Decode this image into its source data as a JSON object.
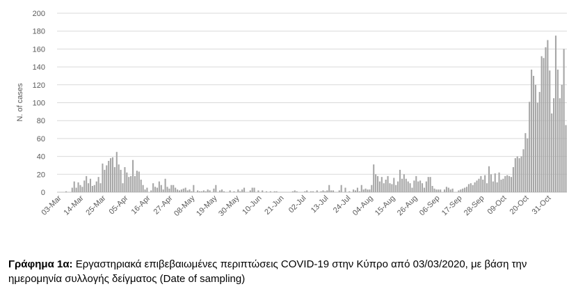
{
  "chart_data": {
    "type": "bar",
    "title": "",
    "xlabel": "",
    "ylabel": "N. of cases",
    "ylim": [
      0,
      200
    ],
    "yticks": [
      0,
      20,
      40,
      60,
      80,
      100,
      120,
      140,
      160,
      180,
      200
    ],
    "x_start": "2020-03-03",
    "x_end": "2020-10-31",
    "xtick_labels": [
      "03-Mar",
      "14-Mar",
      "25-Mar",
      "05-Apr",
      "16-Apr",
      "27-Apr",
      "08-May",
      "19-May",
      "30-May",
      "10-Jun",
      "21-Jun",
      "02-Jul",
      "13-Jul",
      "24-Jul",
      "04-Aug",
      "15-Aug",
      "26-Aug",
      "06-Sep",
      "17-Sep",
      "28-Sep",
      "09-Oct",
      "20-Oct",
      "31-Oct"
    ],
    "grid": "horizontal",
    "bar_color": "#a6a6a6",
    "values": [
      0,
      0,
      0,
      0,
      1,
      0,
      0,
      5,
      12,
      5,
      11,
      8,
      6,
      13,
      18,
      10,
      15,
      7,
      8,
      12,
      17,
      10,
      32,
      25,
      30,
      35,
      38,
      39,
      28,
      45,
      31,
      25,
      10,
      28,
      22,
      17,
      18,
      36,
      18,
      24,
      23,
      14,
      8,
      3,
      5,
      0,
      2,
      10,
      6,
      5,
      12,
      8,
      3,
      15,
      6,
      4,
      8,
      8,
      5,
      3,
      2,
      3,
      4,
      5,
      2,
      3,
      1,
      8,
      0,
      2,
      1,
      1,
      2,
      1,
      3,
      2,
      0,
      4,
      8,
      0,
      2,
      3,
      1,
      0,
      0,
      2,
      0,
      1,
      0,
      3,
      1,
      3,
      5,
      0,
      0,
      2,
      5,
      5,
      0,
      2,
      0,
      2,
      0,
      1,
      0,
      1,
      0,
      1,
      1,
      0,
      0,
      0,
      0,
      0,
      0,
      0,
      1,
      2,
      1,
      0,
      0,
      0,
      1,
      2,
      0,
      1,
      1,
      0,
      2,
      0,
      1,
      2,
      1,
      2,
      8,
      2,
      2,
      0,
      0,
      2,
      8,
      0,
      5,
      0,
      1,
      0,
      3,
      2,
      5,
      1,
      8,
      3,
      4,
      3,
      3,
      8,
      31,
      20,
      18,
      12,
      17,
      10,
      14,
      18,
      10,
      9,
      16,
      8,
      12,
      25,
      15,
      20,
      15,
      12,
      10,
      5,
      13,
      18,
      12,
      13,
      10,
      5,
      12,
      17,
      17,
      7,
      4,
      3,
      3,
      3,
      0,
      3,
      6,
      5,
      3,
      4,
      0,
      0,
      2,
      3,
      4,
      5,
      6,
      9,
      10,
      8,
      11,
      13,
      15,
      18,
      14,
      19,
      10,
      29,
      20,
      12,
      21,
      11,
      22,
      14,
      15,
      18,
      19,
      18,
      17,
      28,
      38,
      40,
      38,
      40,
      48,
      66,
      60,
      101,
      137,
      130,
      120,
      100,
      112,
      152,
      150,
      162,
      170,
      136,
      88,
      105,
      175,
      137,
      105,
      120,
      160,
      75
    ]
  },
  "caption": {
    "bold": "Γράφημα 1α:",
    "text": " Εργαστηριακά επιβεβαιωμένες περιπτώσεις COVID-19 στην Κύπρο από 03/03/2020, με βάση την ημερομηνία συλλογής δείγματος (Date of sampling)"
  }
}
